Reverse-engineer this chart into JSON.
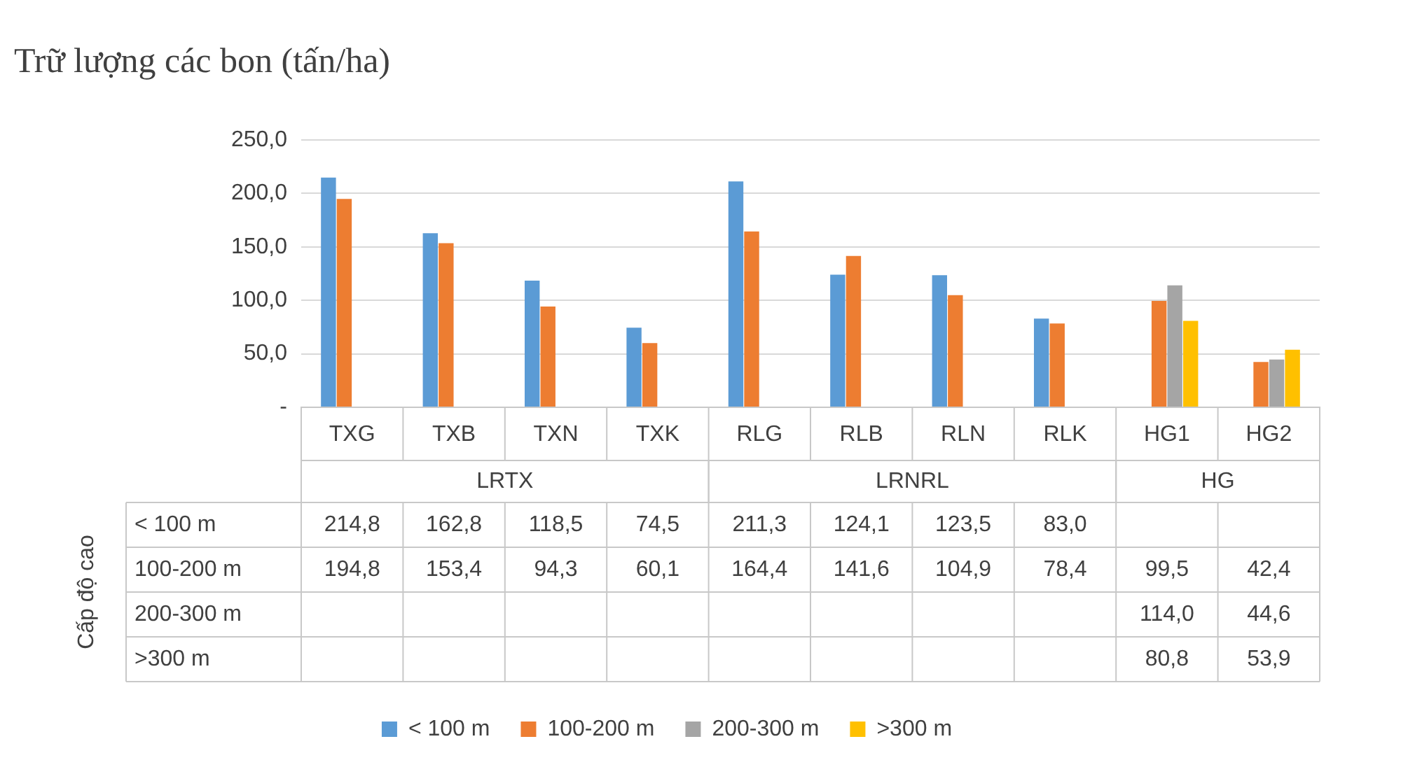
{
  "chart_data": {
    "type": "bar",
    "title": "Trữ lượng các bon (tấn/ha)",
    "categories": [
      "TXG",
      "TXB",
      "TXN",
      "TXK",
      "RLG",
      "RLB",
      "RLN",
      "RLK",
      "HG1",
      "HG2"
    ],
    "series": [
      {
        "name": "< 100 m",
        "color": "#5b9bd5",
        "values": [
          214.8,
          162.8,
          118.5,
          74.5,
          211.3,
          124.1,
          123.5,
          83.0,
          null,
          null
        ],
        "value_labels": [
          "214,8",
          "162,8",
          "118,5",
          "74,5",
          "211,3",
          "124,1",
          "123,5",
          "83,0",
          null,
          null
        ]
      },
      {
        "name": "100-200 m",
        "color": "#ed7d31",
        "values": [
          194.8,
          153.4,
          94.3,
          60.1,
          164.4,
          141.6,
          104.9,
          78.4,
          99.5,
          42.4
        ],
        "value_labels": [
          "194,8",
          "153,4",
          "94,3",
          "60,1",
          "164,4",
          "141,6",
          "104,9",
          "78,4",
          "99,5",
          "42,4"
        ]
      },
      {
        "name": "200-300 m",
        "color": "#a5a5a5",
        "values": [
          null,
          null,
          null,
          null,
          null,
          null,
          null,
          null,
          114.0,
          44.6
        ],
        "value_labels": [
          null,
          null,
          null,
          null,
          null,
          null,
          null,
          null,
          "114,0",
          "44,6"
        ]
      },
      {
        "name": ">300 m",
        "color": "#ffc000",
        "values": [
          null,
          null,
          null,
          null,
          null,
          null,
          null,
          null,
          80.8,
          53.9
        ],
        "value_labels": [
          null,
          null,
          null,
          null,
          null,
          null,
          null,
          null,
          "80,8",
          "53,9"
        ]
      }
    ],
    "ylim": [
      0,
      250
    ],
    "yticks": [
      {
        "value": 0,
        "label": "-"
      },
      {
        "value": 50,
        "label": "50,0"
      },
      {
        "value": 100,
        "label": "100,0"
      },
      {
        "value": 150,
        "label": "150,0"
      },
      {
        "value": 200,
        "label": "200,0"
      },
      {
        "value": 250,
        "label": "250,0"
      }
    ],
    "grid": "y",
    "legend": "bottom",
    "annotations": [
      "LRTX",
      "LRNRL",
      "HG",
      "Cấp độ cao"
    ]
  }
}
